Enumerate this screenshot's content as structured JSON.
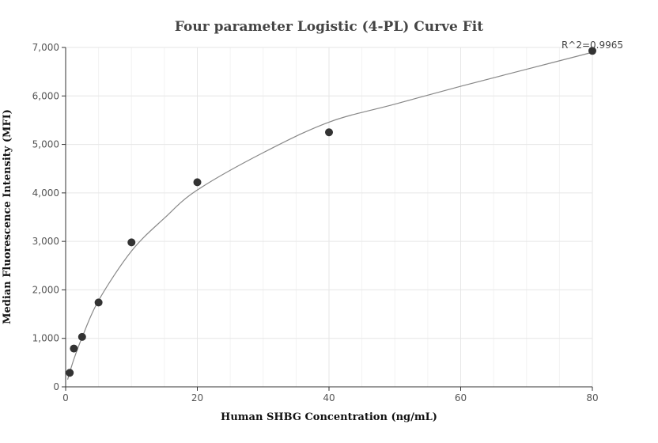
{
  "chart_data": {
    "type": "scatter",
    "title": "Four parameter Logistic (4-PL) Curve Fit",
    "xlabel": "Human SHBG Concentration (ng/mL)",
    "ylabel": "Median Fluorescence Intensity (MFI)",
    "xlim": [
      0,
      80
    ],
    "ylim": [
      0,
      7000
    ],
    "xticks": [
      0,
      20,
      40,
      60,
      80
    ],
    "yticks": [
      0,
      1000,
      2000,
      3000,
      4000,
      5000,
      6000,
      7000
    ],
    "xtick_labels": [
      "0",
      "20",
      "40",
      "60",
      "80"
    ],
    "ytick_labels": [
      "0",
      "1,000",
      "2,000",
      "3,000",
      "4,000",
      "5,000",
      "6,000",
      "7,000"
    ],
    "grid": true,
    "series": [
      {
        "points": [
          {
            "x": 0.625,
            "y": 290
          },
          {
            "x": 1.25,
            "y": 790
          },
          {
            "x": 2.5,
            "y": 1030
          },
          {
            "x": 5,
            "y": 1740
          },
          {
            "x": 10,
            "y": 2980
          },
          {
            "x": 20,
            "y": 4220
          },
          {
            "x": 40,
            "y": 5250
          },
          {
            "x": 80,
            "y": 6930
          }
        ],
        "color": "#333333"
      }
    ],
    "fit": {
      "model": "4-PL",
      "color": "#888888",
      "curve": [
        {
          "x": 0.3,
          "y": 150
        },
        {
          "x": 1.25,
          "y": 570
        },
        {
          "x": 2.5,
          "y": 1020
        },
        {
          "x": 5,
          "y": 1780
        },
        {
          "x": 10,
          "y": 2800
        },
        {
          "x": 15,
          "y": 3480
        },
        {
          "x": 20,
          "y": 4060
        },
        {
          "x": 30,
          "y": 4830
        },
        {
          "x": 40,
          "y": 5460
        },
        {
          "x": 50,
          "y": 5830
        },
        {
          "x": 60,
          "y": 6200
        },
        {
          "x": 70,
          "y": 6550
        },
        {
          "x": 80,
          "y": 6900
        }
      ]
    },
    "annotation": "R^2=0.9965"
  }
}
